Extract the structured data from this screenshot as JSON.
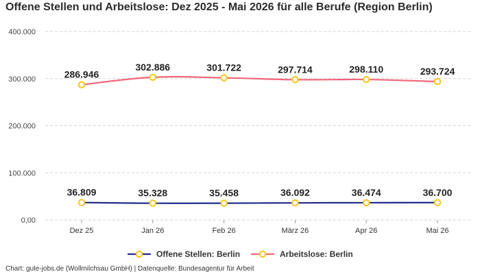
{
  "title": "Offene Stellen und Arbeitslose: Dez 2025 - Mai 2026 für alle Berufe (Region Berlin)",
  "footer": "Chart: gute-jobs.de (Wollmilchsau GmbH) | Datenquelle: Bundesagentur für Arbeit",
  "colors": {
    "offene_stellen": "#1f2d8a",
    "arbeitslose": "#f0677a",
    "marker_stroke": "#f5c518",
    "marker_fill": "#ffffff",
    "grid": "#d3d3d3"
  },
  "chart_data": {
    "type": "line",
    "title": "Offene Stellen und Arbeitslose: Dez 2025 - Mai 2026 für alle Berufe (Region Berlin)",
    "xlabel": "",
    "ylabel": "",
    "categories": [
      "Dez 25",
      "Jan 26",
      "Feb 26",
      "März 26",
      "Apr 26",
      "Mai 26"
    ],
    "ylim": [
      0,
      400000
    ],
    "yticks": [
      0,
      100000,
      200000,
      300000,
      400000
    ],
    "ytick_labels": [
      "0,00",
      "100.000",
      "200.000",
      "300.000",
      "400.000"
    ],
    "grid": "horizontal dashed",
    "legend_position": "bottom-center",
    "series": [
      {
        "name": "Offene Stellen: Berlin",
        "values": [
          36809,
          35328,
          35458,
          36092,
          36474,
          36700
        ],
        "labels": [
          "36.809",
          "35.328",
          "35.458",
          "36.092",
          "36.474",
          "36.700"
        ]
      },
      {
        "name": "Arbeitslose: Berlin",
        "values": [
          286946,
          302886,
          301722,
          297714,
          298110,
          293724
        ],
        "labels": [
          "286.946",
          "302.886",
          "301.722",
          "297.714",
          "298.110",
          "293.724"
        ]
      }
    ]
  }
}
